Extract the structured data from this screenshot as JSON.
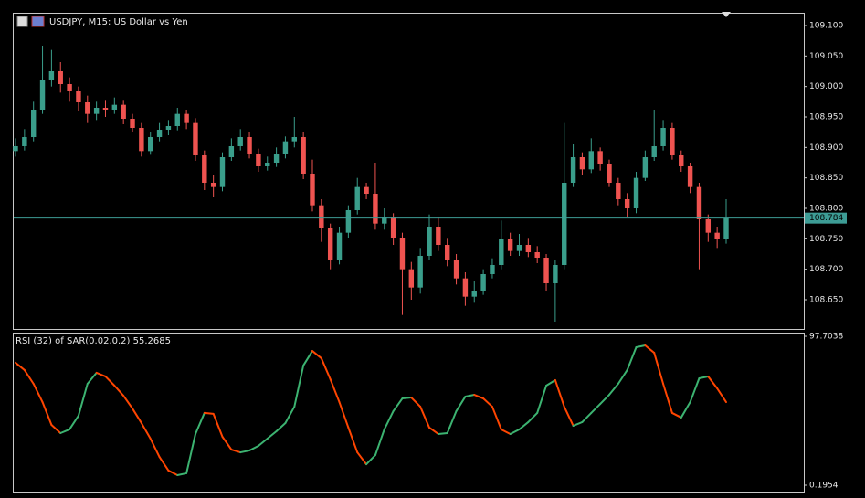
{
  "chart_data": [
    {
      "type": "candlestick",
      "title": "USDJPY, M15:  US Dollar vs Yen",
      "open": [
        108.894,
        108.902,
        108.917,
        108.962,
        109.01,
        109.025,
        109.004,
        108.992,
        108.974,
        108.955,
        108.965,
        108.962,
        108.97,
        108.947,
        108.932,
        108.894,
        108.917,
        108.929,
        108.935,
        108.955,
        108.94,
        108.887,
        108.842,
        108.835,
        108.884,
        108.902,
        108.917,
        108.89,
        108.869,
        108.875,
        108.89,
        108.91,
        108.917,
        108.857,
        108.805,
        108.767,
        108.715,
        108.76,
        108.797,
        108.835,
        108.824,
        108.775,
        108.785,
        108.752,
        108.7,
        108.67,
        108.722,
        108.77,
        108.74,
        108.715,
        108.685,
        108.655,
        108.665,
        108.692,
        108.707,
        108.749,
        108.73,
        108.74,
        108.728,
        108.719,
        108.677,
        108.707,
        108.842,
        108.884,
        108.864,
        108.894,
        108.872,
        108.842,
        108.815,
        108.8,
        108.85,
        108.884,
        108.902,
        108.932,
        108.887,
        108.869,
        108.835,
        108.782,
        108.76,
        108.749
      ],
      "high": [
        108.915,
        108.93,
        108.975,
        109.067,
        109.06,
        109.04,
        109.015,
        109.0,
        108.985,
        108.975,
        108.978,
        108.982,
        108.978,
        108.955,
        108.94,
        108.925,
        108.94,
        108.945,
        108.965,
        108.962,
        108.948,
        108.895,
        108.855,
        108.892,
        108.915,
        108.93,
        108.925,
        108.898,
        108.885,
        108.9,
        108.918,
        108.95,
        108.925,
        108.88,
        108.815,
        108.775,
        108.77,
        108.805,
        108.85,
        108.842,
        108.875,
        108.8,
        108.792,
        108.76,
        108.712,
        108.735,
        108.79,
        108.785,
        108.75,
        108.725,
        108.695,
        108.68,
        108.7,
        108.718,
        108.78,
        108.76,
        108.758,
        108.75,
        108.738,
        108.725,
        108.715,
        108.94,
        108.905,
        108.892,
        108.915,
        108.9,
        108.88,
        108.85,
        108.825,
        108.86,
        108.895,
        108.962,
        108.945,
        108.94,
        108.895,
        108.875,
        108.842,
        108.79,
        108.77,
        108.815
      ],
      "low": [
        108.885,
        108.895,
        108.91,
        108.955,
        109.0,
        108.99,
        108.975,
        108.96,
        108.94,
        108.945,
        108.95,
        108.955,
        108.938,
        108.925,
        108.885,
        108.888,
        108.91,
        108.92,
        108.928,
        108.93,
        108.878,
        108.83,
        108.818,
        108.828,
        108.878,
        108.895,
        108.882,
        108.86,
        108.862,
        108.868,
        108.882,
        108.9,
        108.848,
        108.795,
        108.745,
        108.7,
        108.708,
        108.752,
        108.79,
        108.815,
        108.765,
        108.765,
        108.74,
        108.625,
        108.65,
        108.66,
        108.715,
        108.73,
        108.705,
        108.675,
        108.64,
        108.645,
        108.658,
        108.685,
        108.7,
        108.722,
        108.722,
        108.72,
        108.71,
        108.665,
        108.614,
        108.7,
        108.835,
        108.855,
        108.858,
        108.862,
        108.835,
        108.805,
        108.785,
        108.792,
        108.845,
        108.878,
        108.895,
        108.88,
        108.86,
        108.825,
        108.7,
        108.745,
        108.735,
        108.742
      ],
      "close": [
        108.902,
        108.917,
        108.962,
        109.01,
        109.025,
        109.004,
        108.992,
        108.974,
        108.955,
        108.965,
        108.962,
        108.97,
        108.947,
        108.932,
        108.894,
        108.917,
        108.929,
        108.935,
        108.955,
        108.94,
        108.887,
        108.842,
        108.835,
        108.884,
        108.902,
        108.917,
        108.89,
        108.869,
        108.875,
        108.89,
        108.91,
        108.917,
        108.857,
        108.805,
        108.767,
        108.715,
        108.76,
        108.797,
        108.835,
        108.824,
        108.775,
        108.785,
        108.752,
        108.7,
        108.67,
        108.722,
        108.77,
        108.74,
        108.715,
        108.685,
        108.655,
        108.665,
        108.692,
        108.707,
        108.749,
        108.73,
        108.74,
        108.728,
        108.719,
        108.677,
        108.707,
        108.842,
        108.884,
        108.864,
        108.894,
        108.872,
        108.842,
        108.815,
        108.8,
        108.85,
        108.884,
        108.902,
        108.932,
        108.887,
        108.869,
        108.835,
        108.782,
        108.76,
        108.749,
        108.784
      ],
      "up_color": "#3a9e8b",
      "down_color": "#ef5350",
      "ylim": [
        108.602,
        109.1195
      ],
      "yticks": [
        {
          "value": 108.65,
          "label": "108.650"
        },
        {
          "value": 108.7,
          "label": "108.700"
        },
        {
          "value": 108.75,
          "label": "108.750"
        },
        {
          "value": 108.8,
          "label": "108.800"
        },
        {
          "value": 108.85,
          "label": "108.850"
        },
        {
          "value": 108.9,
          "label": "108.900"
        },
        {
          "value": 108.95,
          "label": "108.950"
        },
        {
          "value": 109.0,
          "label": "109.000"
        },
        {
          "value": 109.05,
          "label": "109.050"
        },
        {
          "value": 109.1,
          "label": "109.100"
        }
      ],
      "last_price": {
        "value": 108.784,
        "label": "108.784"
      },
      "last_price_color": "#3d9c95"
    },
    {
      "type": "line",
      "title": "RSI (32) of SAR(0.02,0.2) 55.2685",
      "values": [
        80.4,
        75.6,
        66.6,
        54.6,
        39.7,
        34.3,
        36.7,
        45.7,
        66.6,
        73.8,
        71.4,
        65.4,
        58.8,
        50.4,
        40.9,
        30.7,
        18.7,
        9.8,
        6.8,
        8.0,
        33.7,
        47.5,
        46.9,
        31.9,
        23.5,
        21.7,
        22.9,
        25.9,
        30.7,
        35.5,
        40.9,
        51.6,
        78.6,
        88.1,
        83.3,
        69.6,
        54.6,
        37.9,
        21.7,
        13.9,
        19.9,
        36.7,
        48.7,
        57.0,
        57.6,
        51.6,
        37.9,
        33.7,
        34.3,
        48.7,
        58.2,
        59.4,
        57.0,
        51.6,
        36.7,
        33.7,
        36.7,
        41.5,
        47.5,
        65.4,
        69.0,
        51.6,
        39.1,
        41.5,
        47.5,
        53.4,
        59.4,
        66.6,
        75.6,
        90.5,
        91.7,
        86.9,
        66.6,
        47.5,
        44.5,
        54.6,
        70.2,
        71.4,
        63.6,
        54.6
      ],
      "up_color": "#3cb371",
      "down_color": "#ff4500",
      "ylim": [
        0.1954,
        97.7038
      ],
      "yticks": [
        0.1954,
        97.7038
      ]
    }
  ]
}
